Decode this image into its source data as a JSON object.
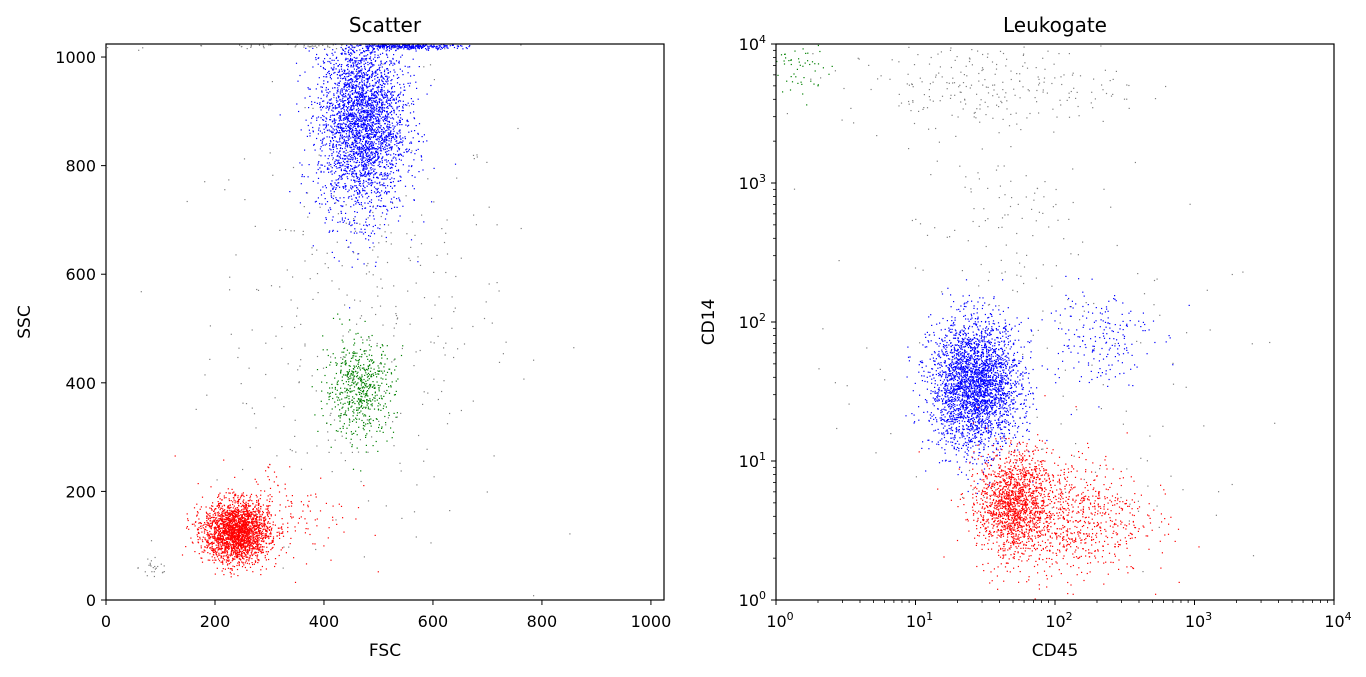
{
  "chart_data": [
    {
      "type": "scatter",
      "title": "Scatter",
      "xlabel": "FSC",
      "ylabel": "SSC",
      "xscale": "linear",
      "yscale": "linear",
      "xlim": [
        0,
        1024
      ],
      "ylim": [
        0,
        1024
      ],
      "xticks": [
        0,
        200,
        400,
        600,
        800,
        1000
      ],
      "yticks": [
        0,
        200,
        400,
        600,
        800,
        1000
      ],
      "xtick_labels": [
        "0",
        "200",
        "400",
        "600",
        "800",
        "1000"
      ],
      "ytick_labels": [
        "0",
        "200",
        "400",
        "600",
        "800",
        "1000"
      ],
      "grid": false,
      "series": [
        {
          "color": "#808080",
          "clusters": [
            {
              "cx": 470,
              "cy": 520,
              "sx": 140,
              "sy": 200,
              "n": 350
            },
            {
              "cx": 90,
              "cy": 60,
              "sx": 15,
              "sy": 15,
              "n": 25
            },
            {
              "cx": 400,
              "cy": 1020,
              "sx": 150,
              "sy": 3,
              "n": 80
            }
          ]
        },
        {
          "color": "#0000ff",
          "clusters": [
            {
              "cx": 470,
              "cy": 880,
              "sx": 40,
              "sy": 85,
              "n": 3200
            },
            {
              "cx": 560,
              "cy": 1020,
              "sx": 45,
              "sy": 3,
              "n": 300
            }
          ]
        },
        {
          "color": "#008000",
          "clusters": [
            {
              "cx": 465,
              "cy": 390,
              "sx": 32,
              "sy": 45,
              "n": 600
            }
          ]
        },
        {
          "color": "#ff0000",
          "clusters": [
            {
              "cx": 240,
              "cy": 125,
              "sx": 30,
              "sy": 28,
              "n": 2400
            },
            {
              "cx": 330,
              "cy": 160,
              "sx": 60,
              "sy": 50,
              "n": 150
            }
          ]
        }
      ]
    },
    {
      "type": "scatter",
      "title": "Leukogate",
      "xlabel": "CD45",
      "ylabel": "CD14",
      "xscale": "log",
      "yscale": "log",
      "xlim": [
        1,
        10000
      ],
      "ylim": [
        1,
        10000
      ],
      "xticks": [
        1,
        10,
        100,
        1000,
        10000
      ],
      "yticks": [
        1,
        10,
        100,
        1000,
        10000
      ],
      "xtick_labels": [
        "10^0",
        "10^1",
        "10^2",
        "10^3",
        "10^4"
      ],
      "ytick_labels": [
        "10^0",
        "10^1",
        "10^2",
        "10^3",
        "10^4"
      ],
      "grid": false,
      "series": [
        {
          "color": "#808080",
          "clusters": [
            {
              "cx": 30,
              "cy": 5000,
              "sx": 0.5,
              "sy": 0.15,
              "n": 250
            },
            {
              "cx": 40,
              "cy": 500,
              "sx": 0.3,
              "sy": 0.35,
              "n": 100
            },
            {
              "cx": 100,
              "cy": 30,
              "sx": 0.9,
              "sy": 0.7,
              "n": 120
            }
          ]
        },
        {
          "color": "#0000ff",
          "clusters": [
            {
              "cx": 27,
              "cy": 35,
              "sx": 0.16,
              "sy": 0.23,
              "n": 3000
            },
            {
              "cx": 200,
              "cy": 80,
              "sx": 0.2,
              "sy": 0.18,
              "n": 200
            }
          ]
        },
        {
          "color": "#008000",
          "clusters": [
            {
              "cx": 1.4,
              "cy": 6500,
              "sx": 0.12,
              "sy": 0.1,
              "n": 60
            }
          ]
        },
        {
          "color": "#ff0000",
          "clusters": [
            {
              "cx": 50,
              "cy": 5,
              "sx": 0.12,
              "sy": 0.18,
              "n": 1300
            },
            {
              "cx": 110,
              "cy": 4,
              "sx": 0.3,
              "sy": 0.22,
              "n": 1000
            }
          ]
        }
      ]
    }
  ]
}
